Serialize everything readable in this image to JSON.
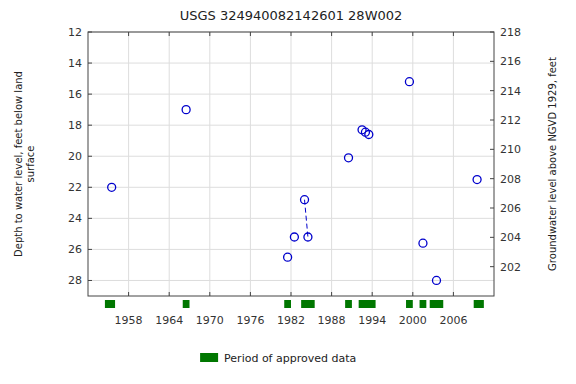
{
  "chart_data": {
    "type": "scatter",
    "title": "USGS 324940082142601 28W002",
    "y_label": "Depth to water level, feet below land\nsurface",
    "y2_label": "Groundwater level above NGVD 1929, feet",
    "series": [
      {
        "type": "scatter",
        "color": "#0000cc",
        "marker": "open-circle",
        "line_style": "none",
        "x": [
          1955.5,
          1966.5,
          1981.5,
          1982.5,
          1984.0,
          1984.5,
          1990.5,
          1992.5,
          1993.0,
          1993.5,
          1999.5,
          2001.5,
          2003.5,
          2009.5
        ],
        "values": [
          22.0,
          17.0,
          26.5,
          25.2,
          22.8,
          25.2,
          20.1,
          18.3,
          18.45,
          18.6,
          15.2,
          25.6,
          28.0,
          21.5
        ]
      },
      {
        "type": "line",
        "color": "#0000cc",
        "line_style": "dashed",
        "x": [
          1984.0,
          1984.5
        ],
        "values": [
          22.8,
          25.2
        ]
      },
      {
        "type": "span",
        "name": "Period of approved data",
        "color": "#007700",
        "values": [
          [
            1954.5,
            1956.0
          ],
          [
            1966.0,
            1967.0
          ],
          [
            1981.0,
            1982.0
          ],
          [
            1983.5,
            1985.5
          ],
          [
            1990.0,
            1991.0
          ],
          [
            1992.0,
            1994.5
          ],
          [
            1999.0,
            2000.0
          ],
          [
            2001.0,
            2002.0
          ],
          [
            2002.5,
            2004.5
          ],
          [
            2009.0,
            2010.5
          ]
        ]
      }
    ],
    "xlim": [
      1952,
      2012
    ],
    "xticks": [
      1958,
      1964,
      1970,
      1976,
      1982,
      1988,
      1994,
      2000,
      2006
    ],
    "ylim": [
      29,
      12
    ],
    "yticks": [
      12,
      14,
      16,
      18,
      20,
      22,
      24,
      26,
      28
    ],
    "y2lim": [
      200,
      218
    ],
    "y2ticks": [
      218,
      216,
      214,
      212,
      210,
      208,
      206,
      204,
      202
    ],
    "grid": true,
    "legend": "bottom"
  }
}
